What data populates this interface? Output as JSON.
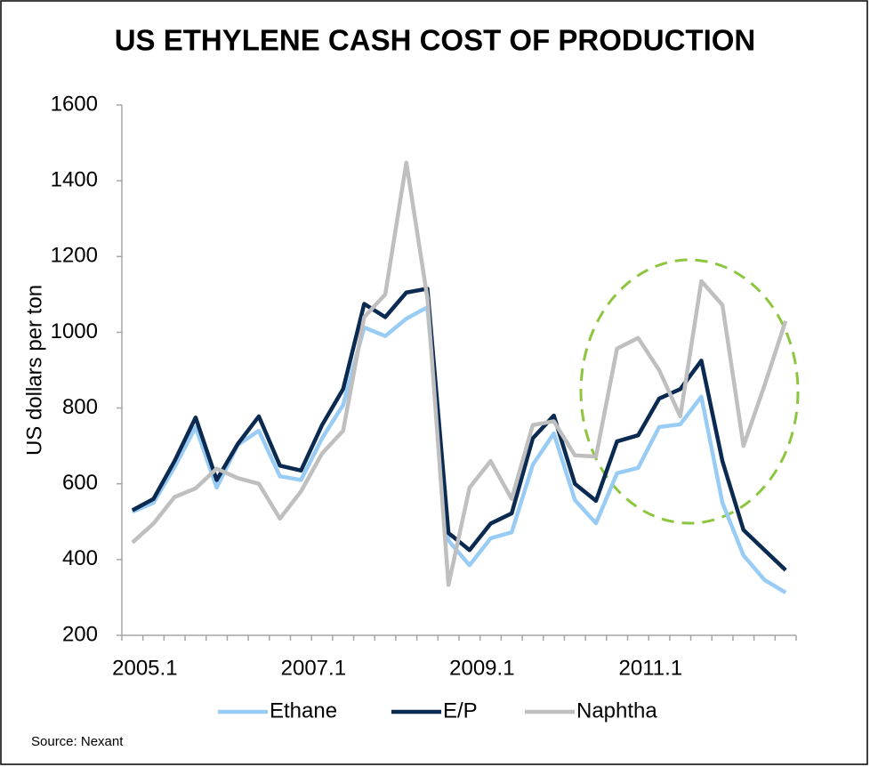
{
  "chart_data": {
    "type": "line",
    "title": "US ETHYLENE CASH COST OF PRODUCTION",
    "y_label": "US dollars per ton",
    "source": "Source: Nexant",
    "categories": [
      "2005.1",
      null,
      null,
      null,
      null,
      null,
      null,
      null,
      "2007.1",
      null,
      null,
      null,
      null,
      null,
      null,
      null,
      "2009.1",
      null,
      null,
      null,
      null,
      null,
      null,
      null,
      "2011.1",
      null,
      null,
      null,
      null,
      null,
      null,
      null
    ],
    "series": [
      {
        "name": "Ethane",
        "color": "#99ccf5",
        "values": [
          526,
          550,
          644,
          750,
          590,
          703,
          740,
          620,
          610,
          720,
          808,
          1013,
          990,
          1036,
          1066,
          450,
          385,
          456,
          472,
          650,
          733,
          557,
          496,
          628,
          642,
          750,
          757,
          830,
          550,
          411,
          346,
          313
        ]
      },
      {
        "name": "E/P",
        "color": "#0b2a52",
        "values": [
          530,
          560,
          660,
          775,
          610,
          705,
          778,
          648,
          635,
          755,
          850,
          1075,
          1040,
          1105,
          1115,
          470,
          425,
          495,
          522,
          720,
          780,
          600,
          555,
          712,
          728,
          825,
          850,
          925,
          660,
          478,
          425,
          372
        ]
      },
      {
        "name": "Naphtha",
        "color": "#bfbfbf",
        "values": [
          445,
          495,
          565,
          588,
          640,
          615,
          600,
          508,
          580,
          680,
          740,
          1040,
          1100,
          1448,
          1090,
          333,
          590,
          660,
          560,
          755,
          765,
          675,
          672,
          957,
          985,
          900,
          778,
          1135,
          1072,
          700,
          860,
          1030
        ]
      }
    ],
    "ylim": [
      200,
      1600
    ],
    "yticks": [
      200,
      400,
      600,
      800,
      1000,
      1200,
      1400,
      1600
    ],
    "grid": false,
    "legend": "bottom"
  }
}
